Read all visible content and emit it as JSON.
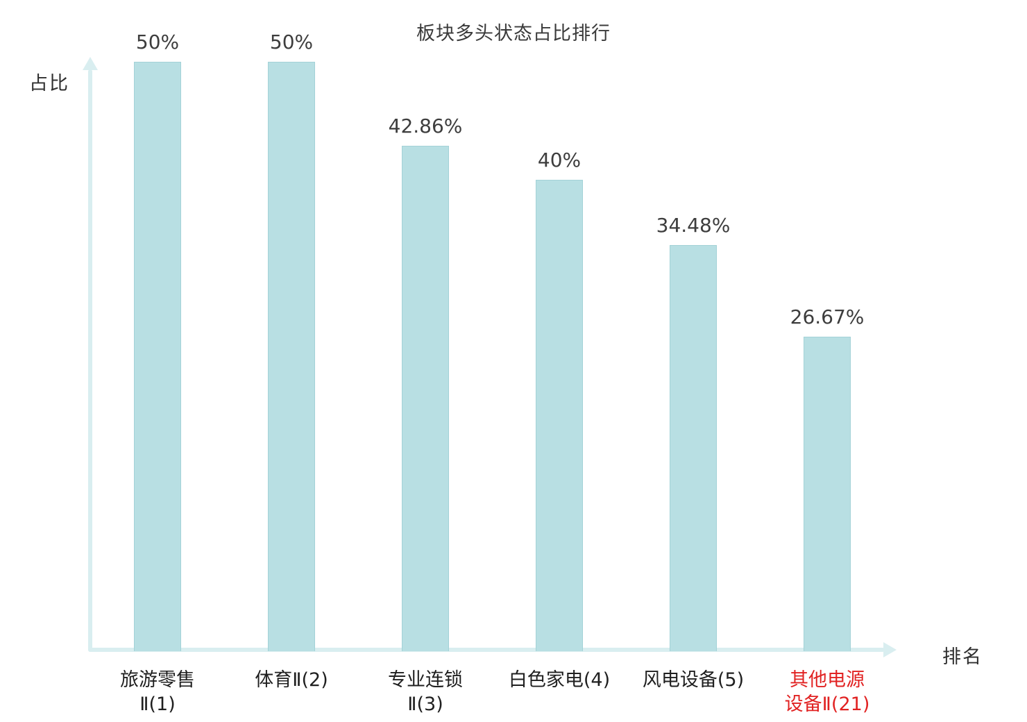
{
  "chart_data": {
    "type": "bar",
    "title": "板块多头状态占比排行",
    "xlabel": "排名",
    "ylabel": "占比",
    "categories": [
      "旅游零售Ⅱ(1)",
      "体育Ⅱ(2)",
      "专业连锁Ⅱ(3)",
      "白色家电(4)",
      "风电设备(5)",
      "其他电源设备Ⅱ(21)"
    ],
    "category_lines": [
      [
        "旅游零售",
        "Ⅱ(1)"
      ],
      [
        "体育Ⅱ(2)"
      ],
      [
        "专业连锁",
        "Ⅱ(3)"
      ],
      [
        "白色家电(4)"
      ],
      [
        "风电设备(5)"
      ],
      [
        "其他电源",
        "设备Ⅱ(21)"
      ]
    ],
    "values": [
      50,
      50,
      42.86,
      40,
      34.48,
      26.67
    ],
    "value_labels": [
      "50%",
      "50%",
      "42.86%",
      "40%",
      "34.48%",
      "26.67%"
    ],
    "highlight_index": 5,
    "ylim": [
      0,
      50
    ],
    "legend": "none",
    "grid": false,
    "bar_color": "#b8dfe3",
    "bar_border_color": "#a3d2d7",
    "axis_color": "#d9eef0",
    "label_color": "#3d3d3d",
    "highlight_color": "#e12222"
  }
}
